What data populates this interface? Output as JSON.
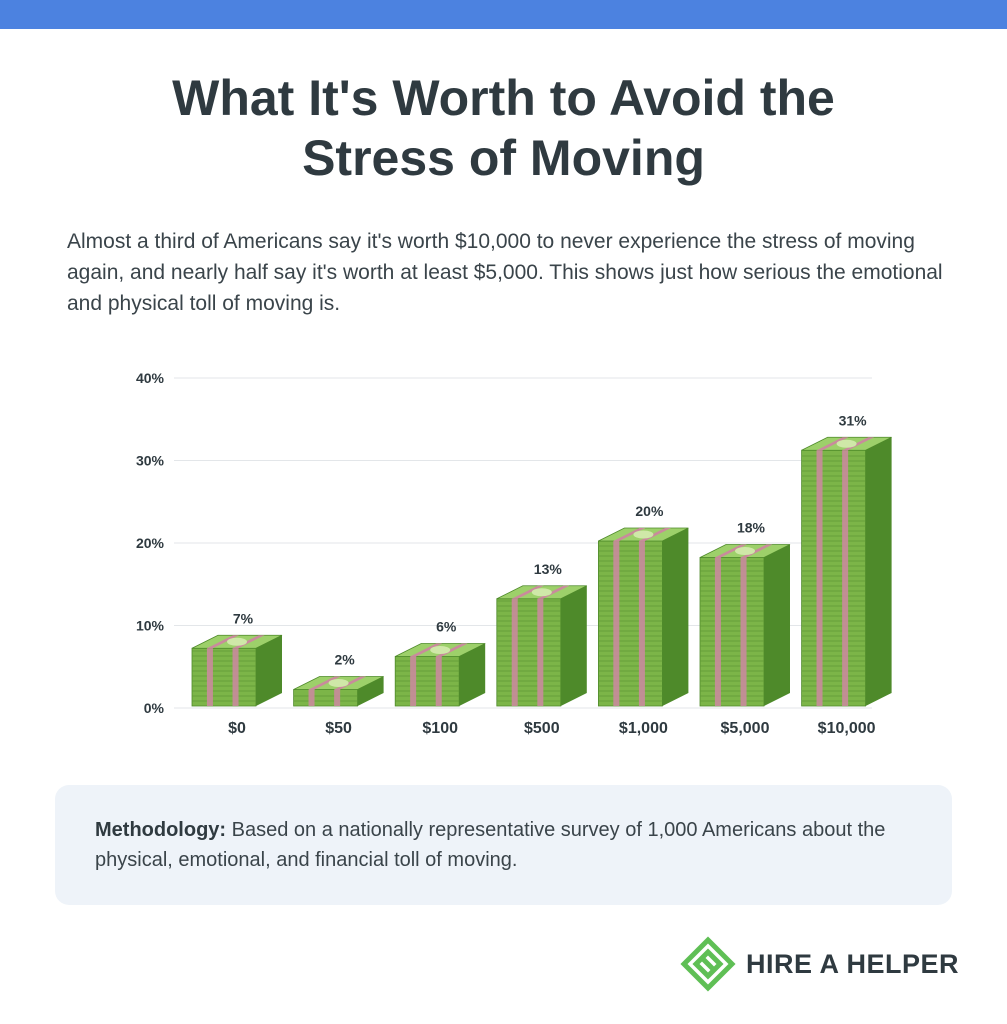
{
  "header": {
    "title_line1": "What It's Worth to Avoid the",
    "title_line2": "Stress of Moving"
  },
  "intro": "Almost a third of Americans say it's worth $10,000 to never experience the stress of moving again, and nearly half say it's worth at least $5,000. This shows just how serious the emotional and physical toll of moving is.",
  "chart_data": {
    "type": "bar",
    "title": "What It's Worth to Avoid the Stress of Moving",
    "xlabel": "",
    "ylabel": "",
    "categories": [
      "$0",
      "$50",
      "$100",
      "$500",
      "$1,000",
      "$5,000",
      "$10,000"
    ],
    "values": [
      7,
      2,
      6,
      13,
      20,
      18,
      31
    ],
    "value_labels": [
      "7%",
      "2%",
      "6%",
      "13%",
      "20%",
      "18%",
      "31%"
    ],
    "yticks": [
      0,
      10,
      20,
      30,
      40
    ],
    "ytick_labels": [
      "0%",
      "10%",
      "20%",
      "30%",
      "40%"
    ],
    "ylim": [
      0,
      40
    ],
    "grid": true,
    "bar_style": "stacks of cash"
  },
  "methodology": {
    "label": "Methodology:",
    "text": "Based on a nationally representative survey of 1,000 Americans about the physical, emotional, and financial toll of moving."
  },
  "brand": {
    "name": "HIRE A HELPER",
    "accent_color": "#4c82e0",
    "logo_color": "#5fbf55",
    "money_light": "#9dd06a",
    "money_mid": "#7cb548",
    "money_dark": "#4e8a2a",
    "band_color": "#c98b9c"
  }
}
